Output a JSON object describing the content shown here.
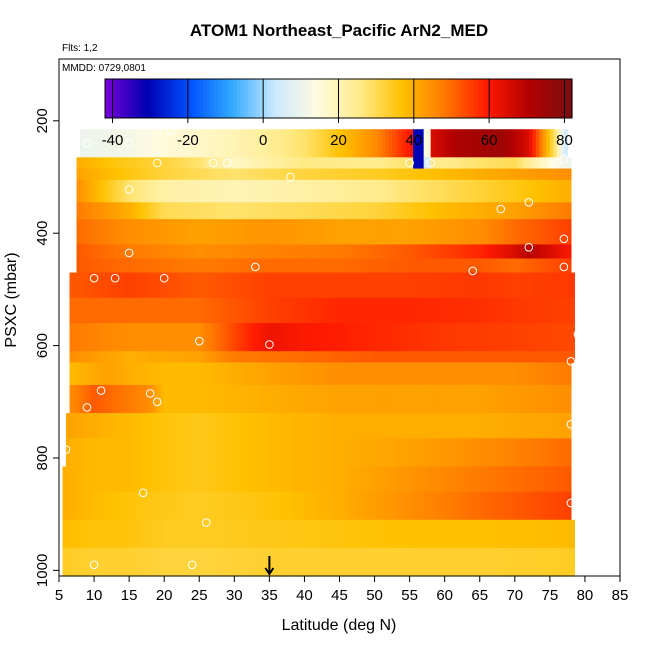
{
  "chart_data": {
    "type": "heatmap",
    "title": "ATOM1 Northeast_Pacific ArN2_MED",
    "flights_note": "Flts: 1,2",
    "date_note": "MMDD: 0729,0801",
    "xlabel": "Latitude (deg N)",
    "ylabel": "PSXC (mbar)",
    "xlim": [
      5,
      85
    ],
    "ylim": [
      1010,
      90
    ],
    "x_ticks": [
      "5",
      "10",
      "15",
      "20",
      "25",
      "30",
      "35",
      "40",
      "45",
      "50",
      "55",
      "60",
      "65",
      "70",
      "75",
      "80",
      "85"
    ],
    "y_ticks": [
      "200",
      "400",
      "600",
      "800",
      "1000"
    ],
    "colorbar": {
      "range": [
        -42,
        82
      ],
      "ticks": [
        "-40",
        "-20",
        "0",
        "20",
        "40",
        "60",
        "80"
      ],
      "colors": [
        "#7a00d9",
        "#0000b0",
        "#0050ff",
        "#33aaff",
        "#cce9ff",
        "#fffbe0",
        "#ffeb8a",
        "#ffc100",
        "#ff7a00",
        "#ff1a00",
        "#b20000",
        "#7a1010"
      ]
    },
    "marker_latitude": 35,
    "rows": [
      {
        "p_top": 215,
        "p_bottom": 265,
        "x_start": 8,
        "x_end": 77.5,
        "points": [
          [
            8,
            10
          ],
          [
            15,
            12
          ],
          [
            20,
            15
          ],
          [
            30,
            20
          ],
          [
            40,
            28
          ],
          [
            50,
            45
          ],
          [
            55,
            60
          ],
          [
            62,
            72
          ],
          [
            68,
            75
          ],
          [
            72,
            65
          ],
          [
            74,
            45
          ],
          [
            76,
            25
          ],
          [
            77,
            5
          ]
        ],
        "specials": [
          [
            55.5,
            57,
            -30
          ],
          [
            57,
            58,
            15
          ]
        ]
      },
      {
        "p_top": 265,
        "p_bottom": 285,
        "x_start": 7.5,
        "x_end": 78,
        "points": [
          [
            7.5,
            40
          ],
          [
            10,
            38
          ],
          [
            14,
            35
          ],
          [
            20,
            32
          ],
          [
            25,
            28
          ],
          [
            30,
            18
          ],
          [
            35,
            22
          ],
          [
            40,
            26
          ],
          [
            50,
            25
          ],
          [
            55,
            28
          ],
          [
            60,
            25
          ],
          [
            65,
            28
          ],
          [
            70,
            30
          ],
          [
            75,
            15
          ],
          [
            78,
            10
          ]
        ],
        "specials": [
          [
            55.5,
            57,
            -30
          ],
          [
            57,
            58,
            5
          ]
        ]
      },
      {
        "p_top": 285,
        "p_bottom": 305,
        "x_start": 7.5,
        "x_end": 78,
        "points": [
          [
            7.5,
            42
          ],
          [
            12,
            38
          ],
          [
            20,
            32
          ],
          [
            30,
            28
          ],
          [
            40,
            32
          ],
          [
            50,
            34
          ],
          [
            60,
            38
          ],
          [
            70,
            42
          ],
          [
            78,
            45
          ]
        ]
      },
      {
        "p_top": 305,
        "p_bottom": 345,
        "x_start": 7.5,
        "x_end": 78,
        "points": [
          [
            7.5,
            45
          ],
          [
            12,
            35
          ],
          [
            15,
            28
          ],
          [
            20,
            22
          ],
          [
            30,
            20
          ],
          [
            40,
            22
          ],
          [
            50,
            25
          ],
          [
            60,
            30
          ],
          [
            70,
            35
          ],
          [
            78,
            40
          ]
        ]
      },
      {
        "p_top": 345,
        "p_bottom": 375,
        "x_start": 7.5,
        "x_end": 78,
        "points": [
          [
            7.5,
            48
          ],
          [
            15,
            40
          ],
          [
            20,
            30
          ],
          [
            30,
            28
          ],
          [
            40,
            30
          ],
          [
            50,
            32
          ],
          [
            60,
            38
          ],
          [
            70,
            42
          ],
          [
            78,
            48
          ]
        ]
      },
      {
        "p_top": 375,
        "p_bottom": 420,
        "x_start": 7.5,
        "x_end": 78,
        "points": [
          [
            7.5,
            50
          ],
          [
            15,
            45
          ],
          [
            25,
            42
          ],
          [
            35,
            44
          ],
          [
            45,
            42
          ],
          [
            55,
            42
          ],
          [
            65,
            45
          ],
          [
            70,
            50
          ],
          [
            78,
            55
          ]
        ]
      },
      {
        "p_top": 420,
        "p_bottom": 445,
        "x_start": 7.5,
        "x_end": 78,
        "points": [
          [
            7.5,
            52
          ],
          [
            15,
            48
          ],
          [
            25,
            45
          ],
          [
            35,
            47
          ],
          [
            45,
            48
          ],
          [
            55,
            52
          ],
          [
            65,
            58
          ],
          [
            70,
            65
          ],
          [
            72,
            70
          ],
          [
            78,
            60
          ]
        ]
      },
      {
        "p_top": 445,
        "p_bottom": 470,
        "x_start": 7.5,
        "x_end": 78,
        "points": [
          [
            7.5,
            52
          ],
          [
            15,
            50
          ],
          [
            25,
            48
          ],
          [
            35,
            50
          ],
          [
            45,
            50
          ],
          [
            55,
            52
          ],
          [
            65,
            52
          ],
          [
            70,
            50
          ],
          [
            78,
            55
          ]
        ]
      },
      {
        "p_top": 470,
        "p_bottom": 515,
        "x_start": 6.5,
        "x_end": 78.5,
        "points": [
          [
            6.5,
            52
          ],
          [
            15,
            55
          ],
          [
            25,
            52
          ],
          [
            35,
            55
          ],
          [
            45,
            55
          ],
          [
            55,
            55
          ],
          [
            65,
            56
          ],
          [
            70,
            55
          ],
          [
            78.5,
            56
          ]
        ]
      },
      {
        "p_top": 515,
        "p_bottom": 560,
        "x_start": 6.5,
        "x_end": 78.5,
        "points": [
          [
            6.5,
            50
          ],
          [
            15,
            50
          ],
          [
            25,
            50
          ],
          [
            35,
            55
          ],
          [
            45,
            58
          ],
          [
            55,
            58
          ],
          [
            65,
            57
          ],
          [
            70,
            56
          ],
          [
            78.5,
            55
          ]
        ]
      },
      {
        "p_top": 560,
        "p_bottom": 610,
        "x_start": 6.5,
        "x_end": 78.5,
        "points": [
          [
            6.5,
            48
          ],
          [
            15,
            45
          ],
          [
            25,
            45
          ],
          [
            32,
            58
          ],
          [
            35,
            62
          ],
          [
            40,
            60
          ],
          [
            50,
            58
          ],
          [
            60,
            56
          ],
          [
            70,
            55
          ],
          [
            78.5,
            54
          ]
        ]
      },
      {
        "p_top": 610,
        "p_bottom": 630,
        "x_start": 6.5,
        "x_end": 78.5,
        "points": [
          [
            6.5,
            45
          ],
          [
            15,
            40
          ],
          [
            25,
            42
          ],
          [
            30,
            48
          ],
          [
            40,
            50
          ],
          [
            50,
            52
          ],
          [
            60,
            52
          ],
          [
            70,
            52
          ],
          [
            78.5,
            52
          ]
        ]
      },
      {
        "p_top": 630,
        "p_bottom": 670,
        "x_start": 6.5,
        "x_end": 78,
        "points": [
          [
            6.5,
            38
          ],
          [
            12,
            42
          ],
          [
            15,
            40
          ],
          [
            20,
            38
          ],
          [
            25,
            38
          ],
          [
            35,
            42
          ],
          [
            45,
            45
          ],
          [
            55,
            45
          ],
          [
            65,
            45
          ],
          [
            70,
            45
          ],
          [
            78,
            48
          ]
        ]
      },
      {
        "p_top": 670,
        "p_bottom": 720,
        "x_start": 6.5,
        "x_end": 78,
        "points": [
          [
            6.5,
            45
          ],
          [
            10,
            52
          ],
          [
            15,
            48
          ],
          [
            18,
            45
          ],
          [
            20,
            38
          ],
          [
            25,
            38
          ],
          [
            35,
            40
          ],
          [
            45,
            42
          ],
          [
            55,
            42
          ],
          [
            65,
            42
          ],
          [
            78,
            45
          ]
        ]
      },
      {
        "p_top": 720,
        "p_bottom": 765,
        "x_start": 6,
        "x_end": 78,
        "points": [
          [
            6,
            42
          ],
          [
            10,
            40
          ],
          [
            15,
            38
          ],
          [
            20,
            36
          ],
          [
            25,
            35
          ],
          [
            35,
            38
          ],
          [
            45,
            40
          ],
          [
            55,
            40
          ],
          [
            65,
            40
          ],
          [
            78,
            42
          ]
        ]
      },
      {
        "p_top": 765,
        "p_bottom": 815,
        "x_start": 6,
        "x_end": 78,
        "points": [
          [
            6,
            40
          ],
          [
            10,
            38
          ],
          [
            15,
            38
          ],
          [
            20,
            36
          ],
          [
            25,
            35
          ],
          [
            35,
            38
          ],
          [
            45,
            40
          ],
          [
            55,
            42
          ],
          [
            65,
            45
          ],
          [
            78,
            50
          ]
        ]
      },
      {
        "p_top": 815,
        "p_bottom": 860,
        "x_start": 5.5,
        "x_end": 78,
        "points": [
          [
            5.5,
            40
          ],
          [
            10,
            38
          ],
          [
            15,
            38
          ],
          [
            20,
            36
          ],
          [
            25,
            35
          ],
          [
            35,
            38
          ],
          [
            45,
            40
          ],
          [
            55,
            44
          ],
          [
            65,
            48
          ],
          [
            78,
            52
          ]
        ]
      },
      {
        "p_top": 860,
        "p_bottom": 910,
        "x_start": 5.5,
        "x_end": 78,
        "points": [
          [
            5.5,
            40
          ],
          [
            10,
            38
          ],
          [
            15,
            36
          ],
          [
            20,
            35
          ],
          [
            25,
            34
          ],
          [
            35,
            36
          ],
          [
            45,
            40
          ],
          [
            55,
            45
          ],
          [
            65,
            50
          ],
          [
            78,
            55
          ]
        ]
      },
      {
        "p_top": 910,
        "p_bottom": 960,
        "x_start": 5.5,
        "x_end": 78.5,
        "points": [
          [
            5.5,
            38
          ],
          [
            10,
            36
          ],
          [
            15,
            36
          ],
          [
            20,
            34
          ],
          [
            25,
            34
          ],
          [
            35,
            35
          ],
          [
            45,
            36
          ],
          [
            55,
            37
          ],
          [
            65,
            37
          ],
          [
            78.5,
            38
          ]
        ]
      },
      {
        "p_top": 960,
        "p_bottom": 1010,
        "x_start": 5.5,
        "x_end": 78.5,
        "points": [
          [
            5.5,
            34
          ],
          [
            10,
            33
          ],
          [
            15,
            33
          ],
          [
            20,
            32
          ],
          [
            25,
            32
          ],
          [
            35,
            33
          ],
          [
            45,
            33
          ],
          [
            55,
            33
          ],
          [
            65,
            33
          ],
          [
            78.5,
            34
          ]
        ]
      }
    ],
    "markers": [
      [
        9,
        240
      ],
      [
        21,
        218
      ],
      [
        15,
        240
      ],
      [
        77,
        268
      ],
      [
        19,
        275
      ],
      [
        27,
        275
      ],
      [
        29,
        275
      ],
      [
        55,
        275
      ],
      [
        58,
        275
      ],
      [
        76,
        275
      ],
      [
        38,
        300
      ],
      [
        15,
        322
      ],
      [
        68,
        357
      ],
      [
        72,
        345
      ],
      [
        77,
        410
      ],
      [
        72,
        425
      ],
      [
        15,
        435
      ],
      [
        33,
        460
      ],
      [
        77,
        460
      ],
      [
        64,
        467
      ],
      [
        10,
        480
      ],
      [
        13,
        480
      ],
      [
        20,
        480
      ],
      [
        79,
        580
      ],
      [
        25,
        592
      ],
      [
        35,
        598
      ],
      [
        78,
        628
      ],
      [
        11,
        680
      ],
      [
        18,
        685
      ],
      [
        19,
        700
      ],
      [
        9,
        710
      ],
      [
        78,
        740
      ],
      [
        6,
        785
      ],
      [
        17,
        862
      ],
      [
        78,
        880
      ],
      [
        26,
        915
      ],
      [
        10,
        990
      ],
      [
        24,
        990
      ]
    ]
  }
}
